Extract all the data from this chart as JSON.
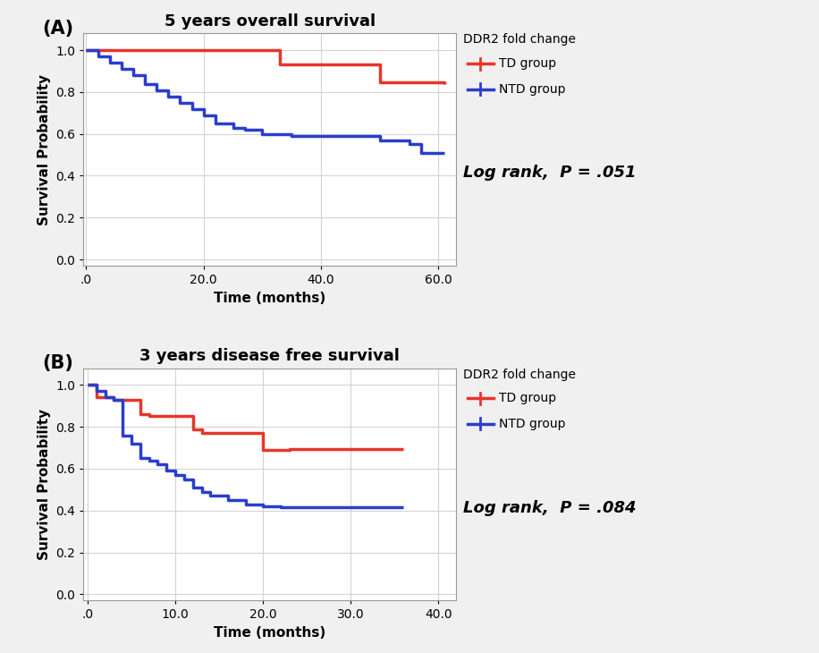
{
  "panel_A": {
    "title": "5 years overall survival",
    "label": "(A)",
    "td_times": [
      0,
      30,
      33,
      50,
      61
    ],
    "td_surv": [
      1.0,
      1.0,
      0.93,
      0.845,
      0.84
    ],
    "ntd_times": [
      0,
      2,
      4,
      6,
      8,
      10,
      12,
      14,
      16,
      18,
      20,
      22,
      25,
      27,
      30,
      35,
      40,
      45,
      50,
      55,
      57,
      61
    ],
    "ntd_surv": [
      1.0,
      0.97,
      0.94,
      0.91,
      0.88,
      0.84,
      0.81,
      0.78,
      0.75,
      0.72,
      0.69,
      0.65,
      0.63,
      0.62,
      0.6,
      0.59,
      0.59,
      0.59,
      0.57,
      0.55,
      0.51,
      0.51
    ],
    "xlim": [
      -0.5,
      63
    ],
    "ylim": [
      -0.03,
      1.08
    ],
    "xticks": [
      0,
      20.0,
      40.0,
      60.0
    ],
    "xticklabels": [
      ".0",
      "20.0",
      "40.0",
      "60.0"
    ],
    "yticks": [
      0.0,
      0.2,
      0.4,
      0.6,
      0.8,
      1.0
    ],
    "yticklabels": [
      "0.0",
      "0.2",
      "0.4",
      "0.6",
      "0.8",
      "1.0"
    ],
    "xlabel": "Time (months)",
    "ylabel": "Survival Probability",
    "log_rank_text": "Log rank,  P = .051",
    "legend_title": "DDR2 fold change",
    "td_label": "TD group",
    "ntd_label": "NTD group"
  },
  "panel_B": {
    "title": "3 years disease free survival",
    "label": "(B)",
    "td_times": [
      0,
      1,
      3,
      6,
      7,
      12,
      13,
      20,
      23,
      36
    ],
    "td_surv": [
      1.0,
      0.94,
      0.93,
      0.86,
      0.85,
      0.79,
      0.77,
      0.69,
      0.695,
      0.695
    ],
    "ntd_times": [
      0,
      1,
      2,
      3,
      4,
      5,
      6,
      7,
      8,
      9,
      10,
      11,
      12,
      13,
      14,
      16,
      18,
      20,
      22,
      23,
      36
    ],
    "ntd_surv": [
      1.0,
      0.97,
      0.94,
      0.93,
      0.76,
      0.72,
      0.65,
      0.64,
      0.62,
      0.59,
      0.57,
      0.55,
      0.51,
      0.49,
      0.47,
      0.45,
      0.43,
      0.42,
      0.415,
      0.415,
      0.415
    ],
    "xlim": [
      -0.5,
      42
    ],
    "ylim": [
      -0.03,
      1.08
    ],
    "xticks": [
      0,
      10.0,
      20.0,
      30.0,
      40.0
    ],
    "xticklabels": [
      ".0",
      "10.0",
      "20.0",
      "30.0",
      "40.0"
    ],
    "yticks": [
      0.0,
      0.2,
      0.4,
      0.6,
      0.8,
      1.0
    ],
    "yticklabels": [
      "0.0",
      "0.2",
      "0.4",
      "0.6",
      "0.8",
      "1.0"
    ],
    "xlabel": "Time (months)",
    "ylabel": "Survival Probability",
    "log_rank_text": "Log rank,  P = .084",
    "legend_title": "DDR2 fold change",
    "td_label": "TD group",
    "ntd_label": "NTD group"
  },
  "td_color": "#E8352A",
  "ntd_color": "#2A3ECC",
  "line_width": 2.5,
  "bg_color": "#f0f0f0",
  "plot_bg_color": "#ffffff",
  "grid_color": "#d0d0d0",
  "title_fontsize": 13,
  "axis_label_fontsize": 11,
  "tick_fontsize": 10,
  "legend_fontsize": 10,
  "logrank_fontsize": 13
}
